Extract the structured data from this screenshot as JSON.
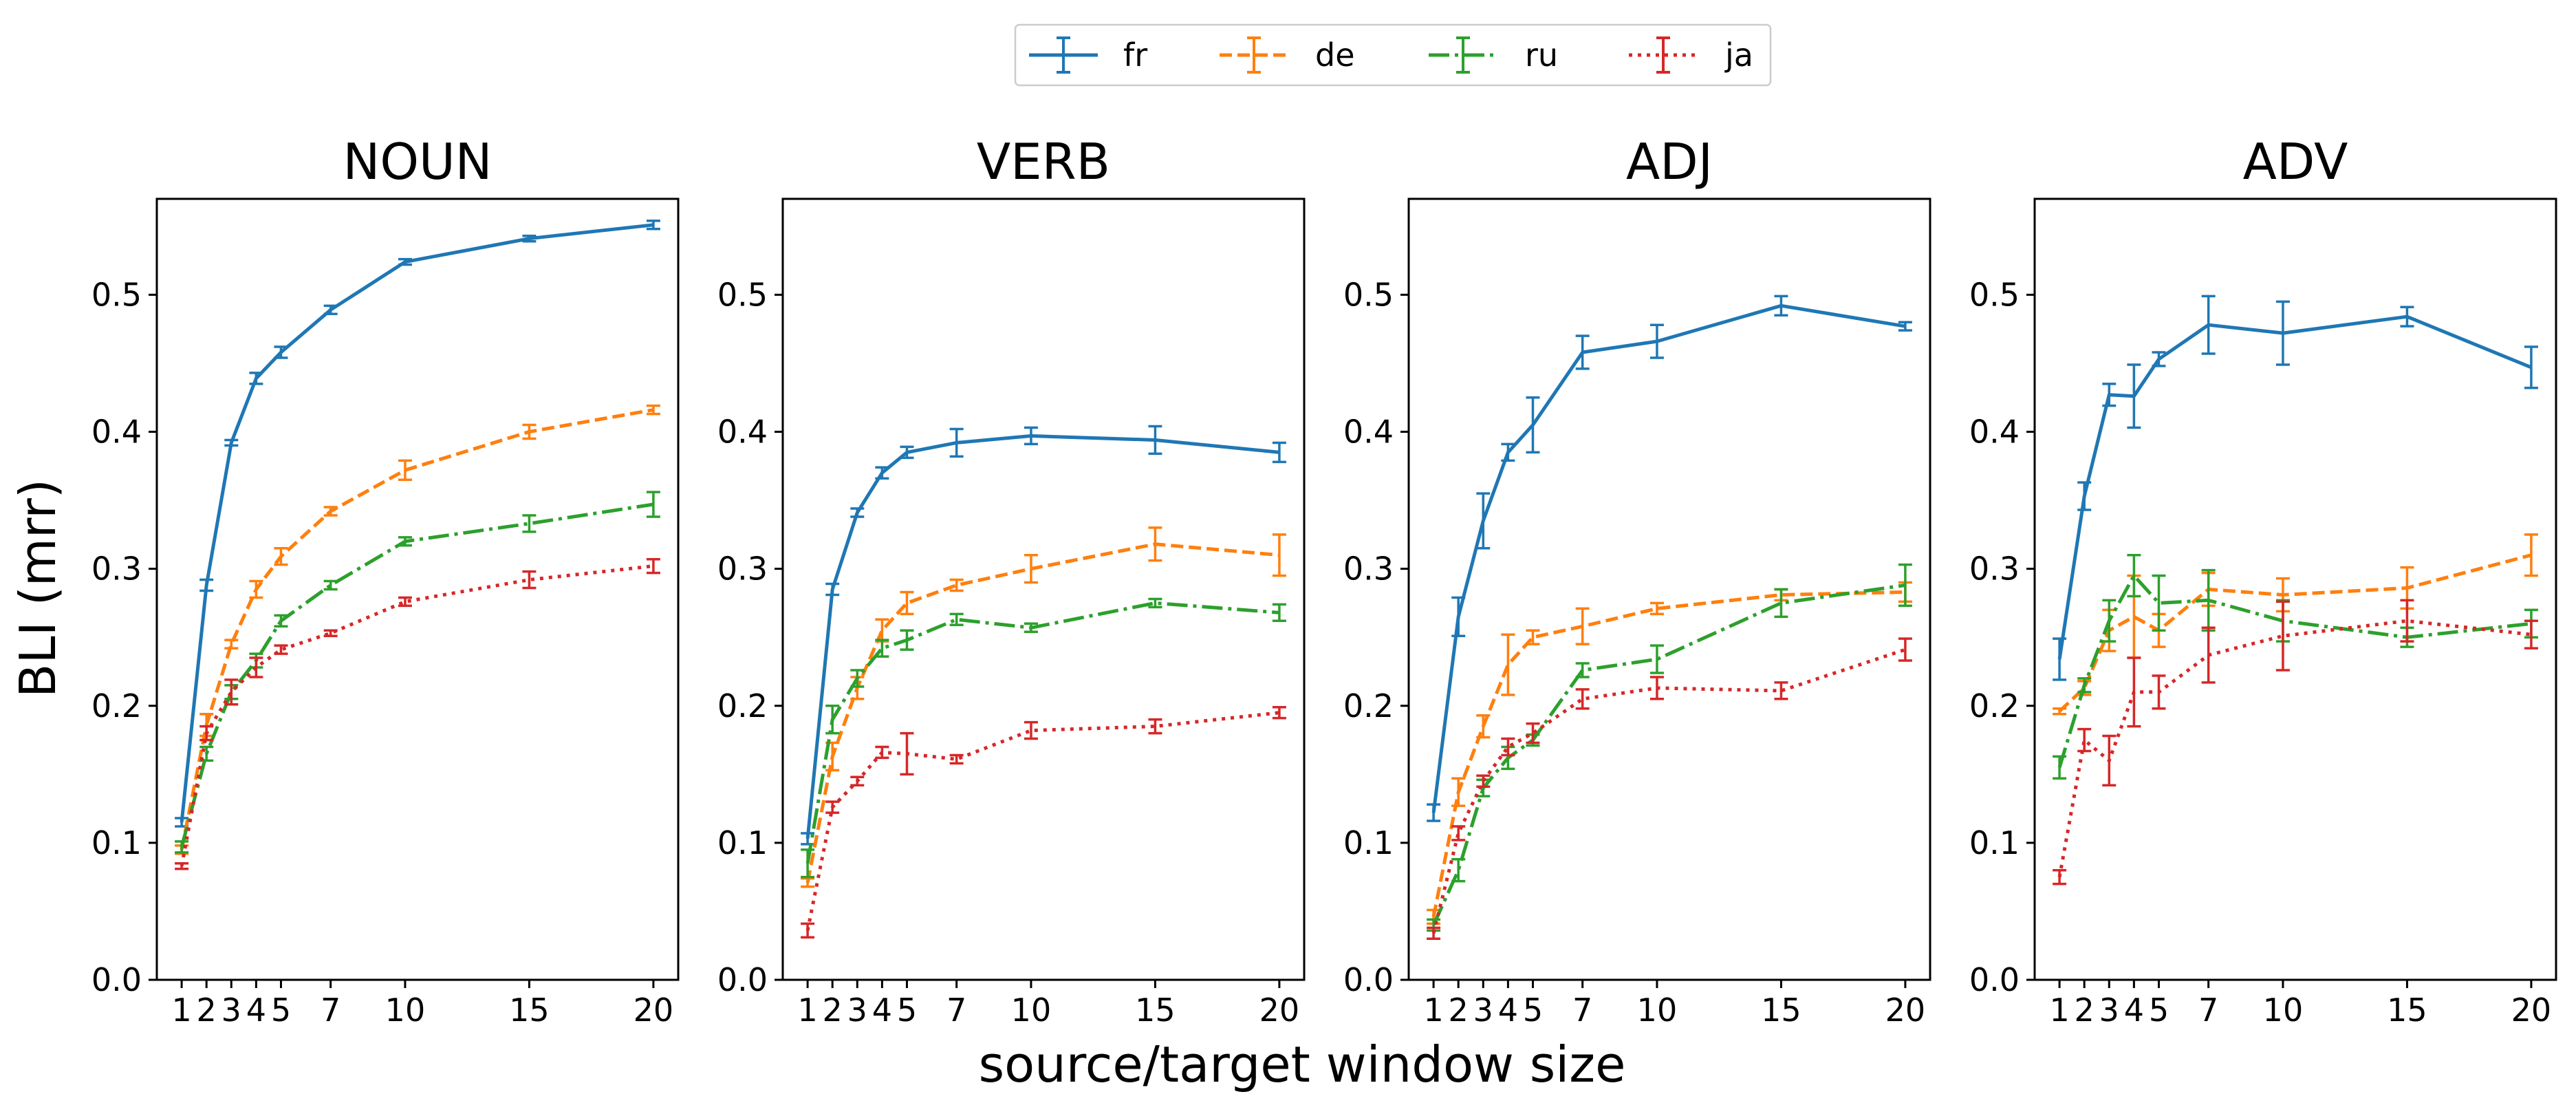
{
  "figure": {
    "ylabel": "BLI (mrr)",
    "xlabel": "source/target window size"
  },
  "legend": {
    "position": "top-center",
    "entries": [
      {
        "name": "fr",
        "color": "#1f77b4",
        "dash": "solid"
      },
      {
        "name": "de",
        "color": "#ff7f0e",
        "dash": "dashed"
      },
      {
        "name": "ru",
        "color": "#2ca02c",
        "dashdot": true,
        "dash": "dashdot"
      },
      {
        "name": "ja",
        "color": "#d62728",
        "dash": "dotted"
      }
    ]
  },
  "chart_data": [
    {
      "type": "line",
      "title": "NOUN",
      "x": [
        1,
        2,
        3,
        4,
        5,
        7,
        10,
        15,
        20
      ],
      "xticks": [
        1,
        2,
        3,
        4,
        5,
        7,
        10,
        15,
        20
      ],
      "yticks": [
        "0.0",
        "0.1",
        "0.2",
        "0.3",
        "0.4",
        "0.5"
      ],
      "xlim": [
        0,
        21
      ],
      "ylim": [
        0,
        0.57
      ],
      "series": [
        {
          "name": "fr",
          "values": [
            0.115,
            0.288,
            0.392,
            0.439,
            0.458,
            0.489,
            0.524,
            0.541,
            0.551
          ],
          "errors": [
            0.003,
            0.004,
            0.002,
            0.004,
            0.004,
            0.003,
            0.002,
            0.002,
            0.003
          ]
        },
        {
          "name": "de",
          "values": [
            0.095,
            0.186,
            0.245,
            0.285,
            0.309,
            0.342,
            0.372,
            0.4,
            0.416
          ],
          "errors": [
            0.003,
            0.008,
            0.003,
            0.006,
            0.006,
            0.003,
            0.007,
            0.005,
            0.003
          ]
        },
        {
          "name": "ru",
          "values": [
            0.097,
            0.165,
            0.21,
            0.233,
            0.262,
            0.288,
            0.32,
            0.333,
            0.347
          ],
          "errors": [
            0.004,
            0.005,
            0.005,
            0.005,
            0.004,
            0.003,
            0.003,
            0.006,
            0.009
          ]
        },
        {
          "name": "ja",
          "values": [
            0.083,
            0.18,
            0.21,
            0.228,
            0.241,
            0.253,
            0.276,
            0.292,
            0.302
          ],
          "errors": [
            0.002,
            0.005,
            0.009,
            0.007,
            0.003,
            0.002,
            0.003,
            0.006,
            0.005
          ]
        }
      ]
    },
    {
      "type": "line",
      "title": "VERB",
      "x": [
        1,
        2,
        3,
        4,
        5,
        7,
        10,
        15,
        20
      ],
      "xticks": [
        1,
        2,
        3,
        4,
        5,
        7,
        10,
        15,
        20
      ],
      "yticks": [
        "0.0",
        "0.1",
        "0.2",
        "0.3",
        "0.4",
        "0.5"
      ],
      "xlim": [
        0,
        21
      ],
      "ylim": [
        0,
        0.57
      ],
      "series": [
        {
          "name": "fr",
          "values": [
            0.103,
            0.285,
            0.341,
            0.37,
            0.385,
            0.392,
            0.397,
            0.394,
            0.385
          ],
          "errors": [
            0.004,
            0.004,
            0.003,
            0.004,
            0.004,
            0.01,
            0.006,
            0.01,
            0.007
          ]
        },
        {
          "name": "de",
          "values": [
            0.071,
            0.163,
            0.213,
            0.255,
            0.275,
            0.288,
            0.3,
            0.318,
            0.31
          ],
          "errors": [
            0.003,
            0.01,
            0.008,
            0.008,
            0.008,
            0.004,
            0.01,
            0.012,
            0.015
          ]
        },
        {
          "name": "ru",
          "values": [
            0.085,
            0.19,
            0.22,
            0.242,
            0.248,
            0.263,
            0.257,
            0.275,
            0.268
          ],
          "errors": [
            0.01,
            0.01,
            0.006,
            0.006,
            0.007,
            0.004,
            0.003,
            0.003,
            0.006
          ]
        },
        {
          "name": "ja",
          "values": [
            0.036,
            0.126,
            0.145,
            0.166,
            0.165,
            0.161,
            0.182,
            0.185,
            0.195
          ],
          "errors": [
            0.005,
            0.004,
            0.003,
            0.004,
            0.015,
            0.003,
            0.006,
            0.005,
            0.004
          ]
        }
      ]
    },
    {
      "type": "line",
      "title": "ADJ",
      "x": [
        1,
        2,
        3,
        4,
        5,
        7,
        10,
        15,
        20
      ],
      "xticks": [
        1,
        2,
        3,
        4,
        5,
        7,
        10,
        15,
        20
      ],
      "yticks": [
        "0.0",
        "0.1",
        "0.2",
        "0.3",
        "0.4",
        "0.5"
      ],
      "xlim": [
        0,
        21
      ],
      "ylim": [
        0,
        0.57
      ],
      "series": [
        {
          "name": "fr",
          "values": [
            0.122,
            0.265,
            0.335,
            0.385,
            0.405,
            0.458,
            0.466,
            0.492,
            0.477
          ],
          "errors": [
            0.006,
            0.014,
            0.02,
            0.006,
            0.02,
            0.012,
            0.012,
            0.007,
            0.003
          ]
        },
        {
          "name": "de",
          "values": [
            0.046,
            0.137,
            0.185,
            0.23,
            0.25,
            0.258,
            0.271,
            0.281,
            0.283
          ],
          "errors": [
            0.005,
            0.01,
            0.008,
            0.022,
            0.005,
            0.013,
            0.004,
            0.004,
            0.007
          ]
        },
        {
          "name": "ru",
          "values": [
            0.04,
            0.08,
            0.14,
            0.162,
            0.175,
            0.226,
            0.234,
            0.275,
            0.288
          ],
          "errors": [
            0.004,
            0.008,
            0.006,
            0.008,
            0.004,
            0.005,
            0.01,
            0.01,
            0.015
          ]
        },
        {
          "name": "ja",
          "values": [
            0.034,
            0.107,
            0.145,
            0.17,
            0.18,
            0.205,
            0.213,
            0.211,
            0.241
          ],
          "errors": [
            0.004,
            0.005,
            0.004,
            0.006,
            0.007,
            0.007,
            0.008,
            0.006,
            0.008
          ]
        }
      ]
    },
    {
      "type": "line",
      "title": "ADV",
      "x": [
        1,
        2,
        3,
        4,
        5,
        7,
        10,
        15,
        20
      ],
      "xticks": [
        1,
        2,
        3,
        4,
        5,
        7,
        10,
        15,
        20
      ],
      "yticks": [
        "0.0",
        "0.1",
        "0.2",
        "0.3",
        "0.4",
        "0.5"
      ],
      "xlim": [
        0,
        21
      ],
      "ylim": [
        0,
        0.57
      ],
      "series": [
        {
          "name": "fr",
          "values": [
            0.234,
            0.353,
            0.427,
            0.426,
            0.453,
            0.478,
            0.472,
            0.484,
            0.447
          ],
          "errors": [
            0.015,
            0.01,
            0.008,
            0.023,
            0.005,
            0.021,
            0.023,
            0.007,
            0.015
          ]
        },
        {
          "name": "de",
          "values": [
            0.196,
            0.213,
            0.255,
            0.265,
            0.255,
            0.285,
            0.281,
            0.286,
            0.31
          ],
          "errors": [
            0.002,
            0.005,
            0.015,
            0.03,
            0.012,
            0.012,
            0.012,
            0.015,
            0.015
          ]
        },
        {
          "name": "ru",
          "values": [
            0.155,
            0.215,
            0.262,
            0.295,
            0.275,
            0.277,
            0.262,
            0.25,
            0.26
          ],
          "errors": [
            0.008,
            0.005,
            0.015,
            0.015,
            0.02,
            0.022,
            0.015,
            0.007,
            0.01
          ]
        },
        {
          "name": "ja",
          "values": [
            0.075,
            0.175,
            0.16,
            0.21,
            0.21,
            0.237,
            0.251,
            0.262,
            0.252
          ],
          "errors": [
            0.005,
            0.008,
            0.018,
            0.025,
            0.012,
            0.02,
            0.025,
            0.015,
            0.01
          ]
        }
      ]
    }
  ]
}
